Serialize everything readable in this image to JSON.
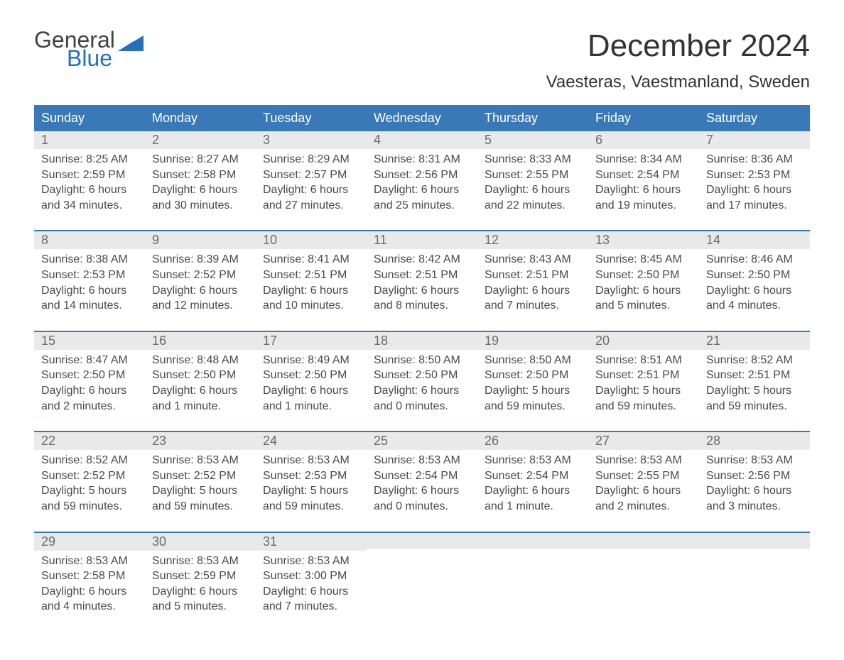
{
  "logo": {
    "text1": "General",
    "text2": "Blue",
    "text1_color": "#424242",
    "text2_color": "#2271b9",
    "flag_color": "#2271b9"
  },
  "title": "December 2024",
  "subtitle": "Vaesteras, Vaestmanland, Sweden",
  "colors": {
    "header_bg": "#3a79b7",
    "header_text": "#ffffff",
    "daynum_bg": "#e9e9e9",
    "daynum_text": "#6b6b6b",
    "body_text": "#4a4a4a",
    "week_border": "#3a79b7",
    "background": "#ffffff"
  },
  "typography": {
    "title_fontsize": 44,
    "subtitle_fontsize": 24,
    "weekday_fontsize": 18,
    "daynum_fontsize": 18,
    "body_fontsize": 16,
    "font_family": "Arial"
  },
  "weekdays": [
    "Sunday",
    "Monday",
    "Tuesday",
    "Wednesday",
    "Thursday",
    "Friday",
    "Saturday"
  ],
  "weeks": [
    [
      {
        "n": "1",
        "sunrise": "Sunrise: 8:25 AM",
        "sunset": "Sunset: 2:59 PM",
        "daylight": "Daylight: 6 hours and 34 minutes."
      },
      {
        "n": "2",
        "sunrise": "Sunrise: 8:27 AM",
        "sunset": "Sunset: 2:58 PM",
        "daylight": "Daylight: 6 hours and 30 minutes."
      },
      {
        "n": "3",
        "sunrise": "Sunrise: 8:29 AM",
        "sunset": "Sunset: 2:57 PM",
        "daylight": "Daylight: 6 hours and 27 minutes."
      },
      {
        "n": "4",
        "sunrise": "Sunrise: 8:31 AM",
        "sunset": "Sunset: 2:56 PM",
        "daylight": "Daylight: 6 hours and 25 minutes."
      },
      {
        "n": "5",
        "sunrise": "Sunrise: 8:33 AM",
        "sunset": "Sunset: 2:55 PM",
        "daylight": "Daylight: 6 hours and 22 minutes."
      },
      {
        "n": "6",
        "sunrise": "Sunrise: 8:34 AM",
        "sunset": "Sunset: 2:54 PM",
        "daylight": "Daylight: 6 hours and 19 minutes."
      },
      {
        "n": "7",
        "sunrise": "Sunrise: 8:36 AM",
        "sunset": "Sunset: 2:53 PM",
        "daylight": "Daylight: 6 hours and 17 minutes."
      }
    ],
    [
      {
        "n": "8",
        "sunrise": "Sunrise: 8:38 AM",
        "sunset": "Sunset: 2:53 PM",
        "daylight": "Daylight: 6 hours and 14 minutes."
      },
      {
        "n": "9",
        "sunrise": "Sunrise: 8:39 AM",
        "sunset": "Sunset: 2:52 PM",
        "daylight": "Daylight: 6 hours and 12 minutes."
      },
      {
        "n": "10",
        "sunrise": "Sunrise: 8:41 AM",
        "sunset": "Sunset: 2:51 PM",
        "daylight": "Daylight: 6 hours and 10 minutes."
      },
      {
        "n": "11",
        "sunrise": "Sunrise: 8:42 AM",
        "sunset": "Sunset: 2:51 PM",
        "daylight": "Daylight: 6 hours and 8 minutes."
      },
      {
        "n": "12",
        "sunrise": "Sunrise: 8:43 AM",
        "sunset": "Sunset: 2:51 PM",
        "daylight": "Daylight: 6 hours and 7 minutes."
      },
      {
        "n": "13",
        "sunrise": "Sunrise: 8:45 AM",
        "sunset": "Sunset: 2:50 PM",
        "daylight": "Daylight: 6 hours and 5 minutes."
      },
      {
        "n": "14",
        "sunrise": "Sunrise: 8:46 AM",
        "sunset": "Sunset: 2:50 PM",
        "daylight": "Daylight: 6 hours and 4 minutes."
      }
    ],
    [
      {
        "n": "15",
        "sunrise": "Sunrise: 8:47 AM",
        "sunset": "Sunset: 2:50 PM",
        "daylight": "Daylight: 6 hours and 2 minutes."
      },
      {
        "n": "16",
        "sunrise": "Sunrise: 8:48 AM",
        "sunset": "Sunset: 2:50 PM",
        "daylight": "Daylight: 6 hours and 1 minute."
      },
      {
        "n": "17",
        "sunrise": "Sunrise: 8:49 AM",
        "sunset": "Sunset: 2:50 PM",
        "daylight": "Daylight: 6 hours and 1 minute."
      },
      {
        "n": "18",
        "sunrise": "Sunrise: 8:50 AM",
        "sunset": "Sunset: 2:50 PM",
        "daylight": "Daylight: 6 hours and 0 minutes."
      },
      {
        "n": "19",
        "sunrise": "Sunrise: 8:50 AM",
        "sunset": "Sunset: 2:50 PM",
        "daylight": "Daylight: 5 hours and 59 minutes."
      },
      {
        "n": "20",
        "sunrise": "Sunrise: 8:51 AM",
        "sunset": "Sunset: 2:51 PM",
        "daylight": "Daylight: 5 hours and 59 minutes."
      },
      {
        "n": "21",
        "sunrise": "Sunrise: 8:52 AM",
        "sunset": "Sunset: 2:51 PM",
        "daylight": "Daylight: 5 hours and 59 minutes."
      }
    ],
    [
      {
        "n": "22",
        "sunrise": "Sunrise: 8:52 AM",
        "sunset": "Sunset: 2:52 PM",
        "daylight": "Daylight: 5 hours and 59 minutes."
      },
      {
        "n": "23",
        "sunrise": "Sunrise: 8:53 AM",
        "sunset": "Sunset: 2:52 PM",
        "daylight": "Daylight: 5 hours and 59 minutes."
      },
      {
        "n": "24",
        "sunrise": "Sunrise: 8:53 AM",
        "sunset": "Sunset: 2:53 PM",
        "daylight": "Daylight: 5 hours and 59 minutes."
      },
      {
        "n": "25",
        "sunrise": "Sunrise: 8:53 AM",
        "sunset": "Sunset: 2:54 PM",
        "daylight": "Daylight: 6 hours and 0 minutes."
      },
      {
        "n": "26",
        "sunrise": "Sunrise: 8:53 AM",
        "sunset": "Sunset: 2:54 PM",
        "daylight": "Daylight: 6 hours and 1 minute."
      },
      {
        "n": "27",
        "sunrise": "Sunrise: 8:53 AM",
        "sunset": "Sunset: 2:55 PM",
        "daylight": "Daylight: 6 hours and 2 minutes."
      },
      {
        "n": "28",
        "sunrise": "Sunrise: 8:53 AM",
        "sunset": "Sunset: 2:56 PM",
        "daylight": "Daylight: 6 hours and 3 minutes."
      }
    ],
    [
      {
        "n": "29",
        "sunrise": "Sunrise: 8:53 AM",
        "sunset": "Sunset: 2:58 PM",
        "daylight": "Daylight: 6 hours and 4 minutes."
      },
      {
        "n": "30",
        "sunrise": "Sunrise: 8:53 AM",
        "sunset": "Sunset: 2:59 PM",
        "daylight": "Daylight: 6 hours and 5 minutes."
      },
      {
        "n": "31",
        "sunrise": "Sunrise: 8:53 AM",
        "sunset": "Sunset: 3:00 PM",
        "daylight": "Daylight: 6 hours and 7 minutes."
      },
      null,
      null,
      null,
      null
    ]
  ]
}
